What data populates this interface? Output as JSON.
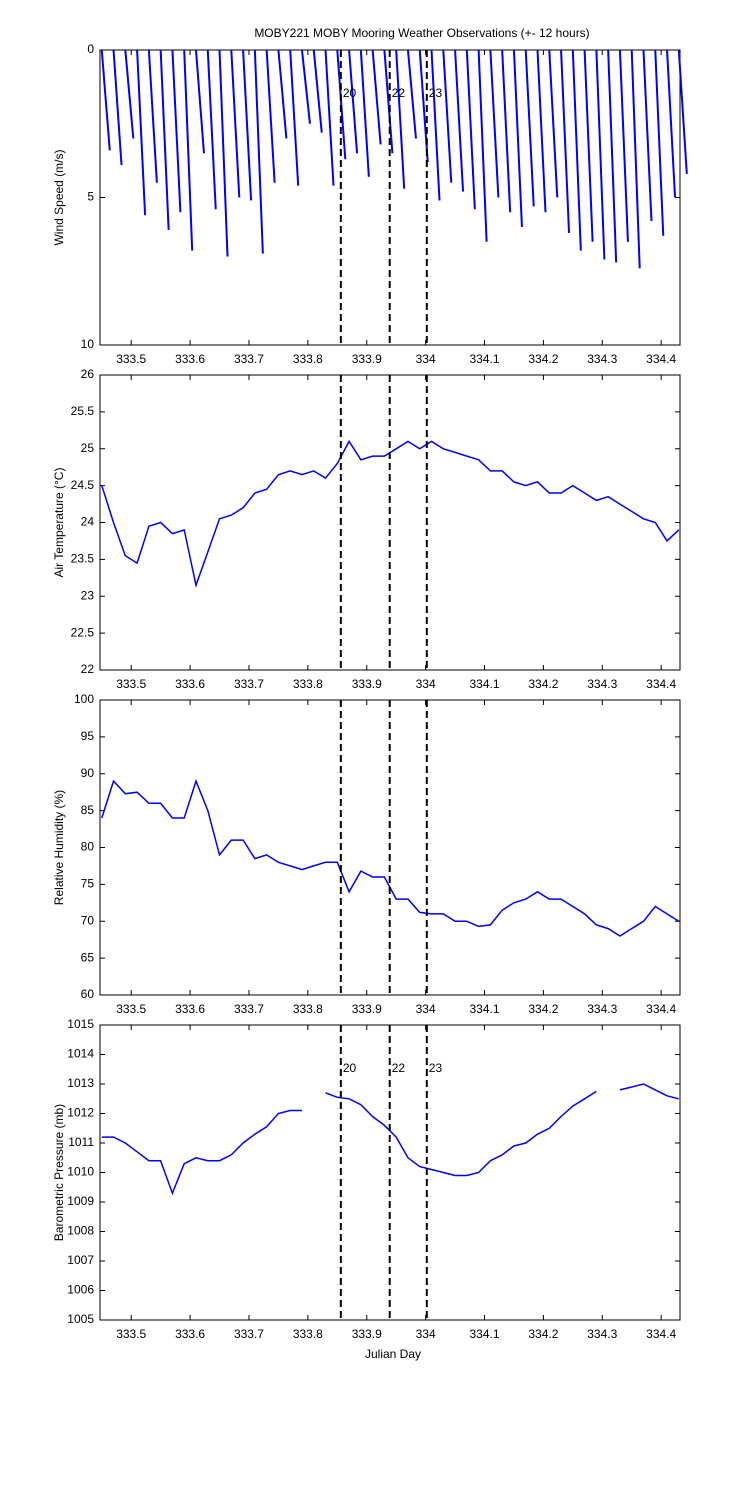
{
  "markers": [
    {
      "x": 333.856,
      "label": "20"
    },
    {
      "x": 333.939,
      "label": "22"
    },
    {
      "x": 334.002,
      "label": "23"
    }
  ],
  "chart_data": [
    {
      "type": "stick",
      "title": "MOBY221 MOBY Mooring Weather Observations (+- 12 hours)",
      "ylabel": "Wind Speed (m/s)",
      "show_marker_labels": true,
      "x": [
        333.45,
        333.47,
        333.49,
        333.51,
        333.53,
        333.55,
        333.57,
        333.59,
        333.61,
        333.63,
        333.65,
        333.67,
        333.69,
        333.71,
        333.73,
        333.75,
        333.77,
        333.79,
        333.81,
        333.83,
        333.85,
        333.87,
        333.89,
        333.91,
        333.93,
        333.95,
        333.97,
        333.99,
        334.01,
        334.03,
        334.05,
        334.07,
        334.09,
        334.11,
        334.13,
        334.15,
        334.17,
        334.19,
        334.21,
        334.23,
        334.25,
        334.27,
        334.29,
        334.31,
        334.33,
        334.35,
        334.37,
        334.39,
        334.41,
        334.43
      ],
      "series": [
        {
          "color": "#0000ff",
          "values": [
            3.4,
            3.9,
            3.0,
            5.6,
            4.5,
            6.1,
            5.5,
            6.8,
            3.5,
            5.4,
            7.0,
            5.0,
            5.1,
            6.9,
            4.5,
            3.0,
            4.6,
            2.5,
            2.8,
            4.6,
            3.7,
            3.5,
            4.3,
            3.2,
            3.5,
            4.7,
            3.0,
            3.8,
            5.1,
            4.5,
            4.8,
            5.4,
            6.5,
            5.0,
            5.5,
            6.0,
            5.3,
            5.5,
            5.0,
            6.2,
            6.8,
            6.5,
            7.1,
            7.2,
            6.5,
            7.4,
            5.8,
            6.3,
            5.0,
            4.2
          ]
        }
      ],
      "xlim": [
        333.447,
        334.432
      ],
      "xticks": [
        333.5,
        333.6,
        333.7,
        333.8,
        333.9,
        334,
        334.1,
        334.2,
        334.3,
        334.4
      ],
      "ylim": [
        0,
        10
      ],
      "yticks": [
        0,
        5,
        10
      ],
      "y_inverted": true
    },
    {
      "type": "line",
      "ylabel": "Air Temperature (°C)",
      "x": [
        333.45,
        333.47,
        333.49,
        333.51,
        333.53,
        333.55,
        333.57,
        333.59,
        333.61,
        333.63,
        333.65,
        333.67,
        333.69,
        333.71,
        333.73,
        333.75,
        333.77,
        333.79,
        333.81,
        333.83,
        333.85,
        333.87,
        333.89,
        333.91,
        333.93,
        333.95,
        333.97,
        333.99,
        334.01,
        334.03,
        334.05,
        334.07,
        334.09,
        334.11,
        334.13,
        334.15,
        334.17,
        334.19,
        334.21,
        334.23,
        334.25,
        334.27,
        334.29,
        334.31,
        334.33,
        334.35,
        334.37,
        334.39,
        334.41,
        334.43
      ],
      "series": [
        {
          "color": "#0000ff",
          "values": [
            24.5,
            24.0,
            23.55,
            23.45,
            23.95,
            24.0,
            23.85,
            23.9,
            23.15,
            23.6,
            24.05,
            24.1,
            24.2,
            24.4,
            24.45,
            24.65,
            24.7,
            24.65,
            24.7,
            24.6,
            24.8,
            25.1,
            24.85,
            24.9,
            24.9,
            25.0,
            25.1,
            25.0,
            25.1,
            25.0,
            24.95,
            24.9,
            24.85,
            24.7,
            24.7,
            24.55,
            24.5,
            24.55,
            24.4,
            24.4,
            24.5,
            24.4,
            24.3,
            24.35,
            24.25,
            24.15,
            24.05,
            24.0,
            23.75,
            23.9
          ]
        }
      ],
      "xlim": [
        333.447,
        334.432
      ],
      "xticks": [
        333.5,
        333.6,
        333.7,
        333.8,
        333.9,
        334,
        334.1,
        334.2,
        334.3,
        334.4
      ],
      "ylim": [
        22,
        26
      ],
      "yticks": [
        22,
        22.5,
        23,
        23.5,
        24,
        24.5,
        25,
        25.5,
        26
      ]
    },
    {
      "type": "line",
      "ylabel": "Relative Humidity (%)",
      "x": [
        333.45,
        333.47,
        333.49,
        333.51,
        333.53,
        333.55,
        333.57,
        333.59,
        333.61,
        333.63,
        333.65,
        333.67,
        333.69,
        333.71,
        333.73,
        333.75,
        333.77,
        333.79,
        333.81,
        333.83,
        333.85,
        333.87,
        333.89,
        333.91,
        333.93,
        333.95,
        333.97,
        333.99,
        334.01,
        334.03,
        334.05,
        334.07,
        334.09,
        334.11,
        334.13,
        334.15,
        334.17,
        334.19,
        334.21,
        334.23,
        334.25,
        334.27,
        334.29,
        334.31,
        334.33,
        334.35,
        334.37,
        334.39,
        334.41,
        334.43
      ],
      "series": [
        {
          "color": "#0000ff",
          "values": [
            84,
            89,
            87.3,
            87.5,
            86,
            86,
            84,
            84,
            89,
            85,
            79,
            81,
            81,
            78.5,
            79,
            78,
            77.5,
            77,
            77.5,
            78,
            78,
            74,
            76.8,
            76,
            76,
            73,
            73,
            71.2,
            71,
            71,
            70,
            70,
            69.3,
            69.5,
            71.5,
            72.5,
            73,
            74,
            73,
            73,
            72,
            71,
            69.5,
            69,
            68,
            69,
            70,
            72,
            71,
            70
          ]
        }
      ],
      "xlim": [
        333.447,
        334.432
      ],
      "xticks": [
        333.5,
        333.6,
        333.7,
        333.8,
        333.9,
        334,
        334.1,
        334.2,
        334.3,
        334.4
      ],
      "ylim": [
        60,
        100
      ],
      "yticks": [
        60,
        65,
        70,
        75,
        80,
        85,
        90,
        95,
        100
      ]
    },
    {
      "type": "line",
      "ylabel": "Barometric Pressure (mb)",
      "xlabel": "Julian Day",
      "show_marker_labels": true,
      "x": [
        333.45,
        333.47,
        333.49,
        333.51,
        333.53,
        333.55,
        333.57,
        333.59,
        333.61,
        333.63,
        333.65,
        333.67,
        333.69,
        333.71,
        333.73,
        333.75,
        333.77,
        333.79,
        333.81,
        333.83,
        333.85,
        333.87,
        333.89,
        333.91,
        333.93,
        333.95,
        333.97,
        333.99,
        334.01,
        334.03,
        334.05,
        334.07,
        334.09,
        334.11,
        334.13,
        334.15,
        334.17,
        334.19,
        334.21,
        334.23,
        334.25,
        334.27,
        334.29,
        334.31,
        334.33,
        334.35,
        334.37,
        334.39,
        334.41,
        334.43
      ],
      "series": [
        {
          "color": "#0000ff",
          "values": [
            1011.2,
            1011.2,
            1011.0,
            1010.7,
            1010.4,
            1010.4,
            1009.3,
            1010.3,
            1010.5,
            1010.4,
            1010.4,
            1010.6,
            1011.0,
            1011.3,
            1011.55,
            1012.0,
            1012.1,
            1012.1,
            null,
            1012.7,
            1012.55,
            1012.5,
            1012.3,
            1011.9,
            1011.6,
            1011.2,
            1010.5,
            1010.2,
            1010.1,
            1010.0,
            1009.9,
            1009.9,
            1010.0,
            1010.4,
            1010.6,
            1010.9,
            1011.0,
            1011.3,
            1011.5,
            1011.9,
            1012.25,
            1012.5,
            1012.75,
            null,
            1012.8,
            1012.9,
            1013.0,
            1012.8,
            1012.6,
            1012.5
          ]
        }
      ],
      "xlim": [
        333.447,
        334.432
      ],
      "xticks": [
        333.5,
        333.6,
        333.7,
        333.8,
        333.9,
        334,
        334.1,
        334.2,
        334.3,
        334.4
      ],
      "ylim": [
        1005,
        1015
      ],
      "yticks": [
        1005,
        1006,
        1007,
        1008,
        1009,
        1010,
        1011,
        1012,
        1013,
        1014,
        1015
      ]
    }
  ]
}
